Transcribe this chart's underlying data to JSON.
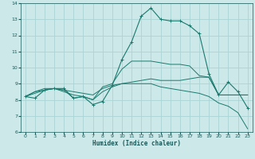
{
  "xlabel": "Humidex (Indice chaleur)",
  "x_ticks": [
    0,
    1,
    2,
    3,
    4,
    5,
    6,
    7,
    8,
    9,
    10,
    11,
    12,
    13,
    14,
    15,
    16,
    17,
    18,
    19,
    20,
    21,
    22,
    23
  ],
  "ylim": [
    6,
    14
  ],
  "xlim": [
    -0.5,
    23.5
  ],
  "y_ticks": [
    6,
    7,
    8,
    9,
    10,
    11,
    12,
    13,
    14
  ],
  "bg_color": "#cce8e8",
  "grid_color": "#aad4d4",
  "line_color": "#1a7a6e",
  "series1": [
    8.2,
    8.1,
    8.6,
    8.7,
    8.7,
    8.1,
    8.2,
    7.7,
    7.9,
    8.9,
    10.5,
    11.6,
    13.2,
    13.7,
    13.0,
    12.9,
    12.9,
    12.6,
    12.1,
    9.6,
    8.3,
    9.1,
    8.5,
    7.5
  ],
  "series2": [
    8.2,
    8.5,
    8.6,
    8.7,
    8.6,
    8.5,
    8.4,
    8.3,
    8.7,
    8.9,
    9.0,
    9.1,
    9.2,
    9.3,
    9.2,
    9.2,
    9.2,
    9.3,
    9.4,
    9.4,
    8.3,
    8.3,
    8.3,
    8.3
  ],
  "series3": [
    8.2,
    8.4,
    8.6,
    8.7,
    8.5,
    8.3,
    8.2,
    8.0,
    8.5,
    8.8,
    9.0,
    9.0,
    9.0,
    9.0,
    8.8,
    8.7,
    8.6,
    8.5,
    8.4,
    8.2,
    7.8,
    7.6,
    7.2,
    6.2
  ],
  "series4": [
    8.2,
    8.5,
    8.7,
    8.7,
    8.6,
    8.1,
    8.2,
    8.0,
    8.8,
    9.0,
    9.9,
    10.4,
    10.4,
    10.4,
    10.3,
    10.2,
    10.2,
    10.1,
    9.5,
    9.4,
    8.3,
    8.3,
    8.3,
    8.3
  ]
}
